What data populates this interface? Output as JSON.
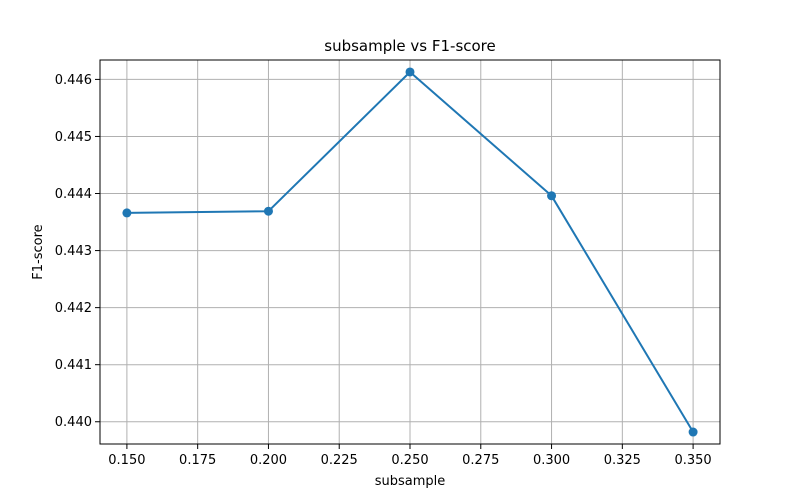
{
  "chart_data": {
    "type": "line",
    "title": "subsample vs F1-score",
    "xlabel": "subsample",
    "ylabel": "F1-score",
    "x": [
      0.15,
      0.2,
      0.25,
      0.3,
      0.35
    ],
    "series": [
      {
        "values": [
          0.44366,
          0.44369,
          0.44613,
          0.44396,
          0.43982
        ],
        "color": "#1f77b4"
      }
    ],
    "xlim": [
      0.1405,
      0.3595
    ],
    "ylim": [
      0.43961,
      0.44634
    ],
    "xticks": [
      "0.150",
      "0.175",
      "0.200",
      "0.225",
      "0.250",
      "0.275",
      "0.300",
      "0.325",
      "0.350"
    ],
    "yticks": [
      "0.440",
      "0.441",
      "0.442",
      "0.443",
      "0.444",
      "0.445",
      "0.446"
    ],
    "grid": true,
    "marker": "circle"
  }
}
